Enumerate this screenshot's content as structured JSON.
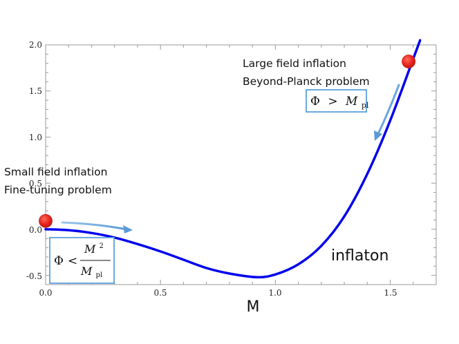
{
  "chart_data": {
    "type": "line",
    "title": "",
    "xlabel": "M",
    "ylabel": "",
    "xlim": [
      0,
      1.7
    ],
    "ylim": [
      -0.6,
      2.0
    ],
    "x_ticks": [
      "0.0",
      "0.5",
      "1.0",
      "1.5"
    ],
    "y_ticks": [
      "-0.5",
      "0.0",
      "0.5",
      "1.0",
      "1.5",
      "2.0"
    ],
    "series": [
      {
        "name": "inflaton potential",
        "color": "#0000ee",
        "x": [
          0.0,
          0.1,
          0.2,
          0.3,
          0.4,
          0.5,
          0.6,
          0.7,
          0.8,
          0.92,
          1.0,
          1.1,
          1.2,
          1.3,
          1.4,
          1.5,
          1.6,
          1.63
        ],
        "y": [
          0.0,
          -0.01,
          -0.04,
          -0.09,
          -0.16,
          -0.24,
          -0.33,
          -0.42,
          -0.48,
          -0.52,
          -0.49,
          -0.38,
          -0.18,
          0.14,
          0.6,
          1.18,
          1.85,
          2.05
        ]
      }
    ],
    "markers": [
      {
        "name": "small-field-point",
        "x": 0.0,
        "y": 0.09,
        "color": "#e8231c"
      },
      {
        "name": "large-field-point",
        "x": 1.58,
        "y": 1.82,
        "color": "#e8231c"
      }
    ],
    "arrows": [
      {
        "name": "small-field-arrow",
        "from": [
          0.06,
          0.08
        ],
        "to": [
          0.37,
          0.0
        ],
        "color": "#6aa6dc"
      },
      {
        "name": "large-field-arrow",
        "from": [
          1.55,
          1.62
        ],
        "to": [
          1.43,
          0.97
        ],
        "color": "#6aa6dc"
      }
    ],
    "annotations": {
      "small_field_line1": "Small field inflation",
      "small_field_line2": "Fine-tuning problem",
      "large_field_line1": "Large field inflation",
      "large_field_line2": "Beyond-Planck problem",
      "curve_label": "inflaton",
      "small_field_condition": "Φ < M²/Mpl",
      "large_field_condition": "Φ > Mpl"
    },
    "formula_parts": {
      "phi": "Φ",
      "less": "<",
      "greater": ">",
      "m": "M",
      "sq": "2",
      "pl": "pl"
    },
    "box_color": "#5aa0dc"
  }
}
